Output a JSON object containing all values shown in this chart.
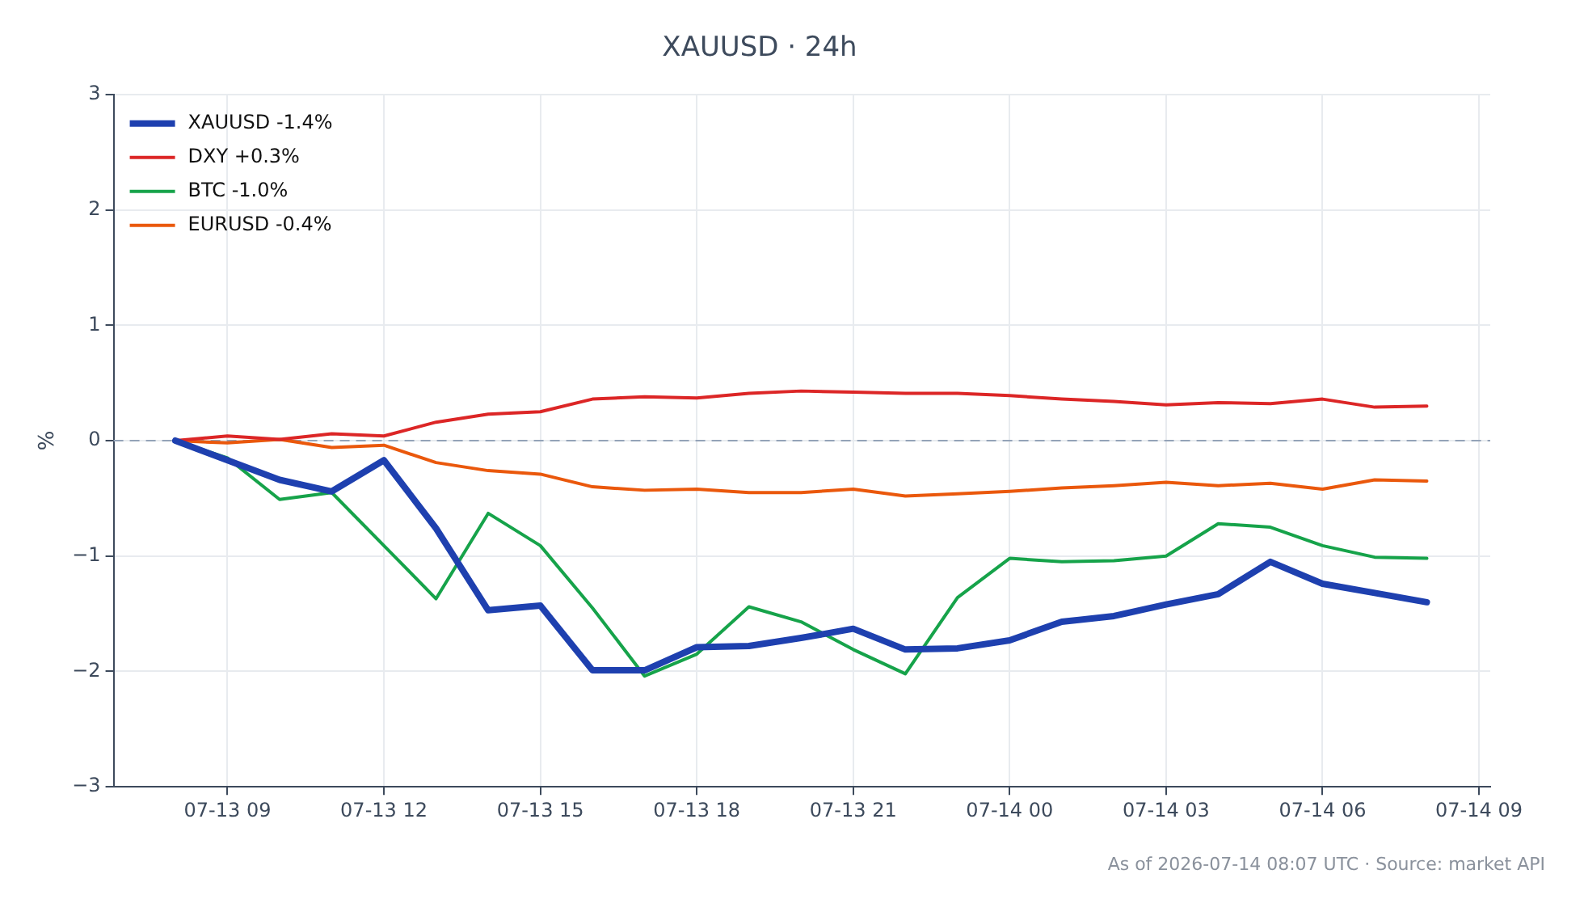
{
  "chart_data": {
    "type": "line",
    "title": "XAUUSD · 24h",
    "ylabel": "%",
    "x": [
      "2026-07-13T08:00",
      "2026-07-13T09:00",
      "2026-07-13T10:00",
      "2026-07-13T11:00",
      "2026-07-13T12:00",
      "2026-07-13T13:00",
      "2026-07-13T14:00",
      "2026-07-13T15:00",
      "2026-07-13T16:00",
      "2026-07-13T17:00",
      "2026-07-13T18:00",
      "2026-07-13T19:00",
      "2026-07-13T20:00",
      "2026-07-13T21:00",
      "2026-07-13T22:00",
      "2026-07-13T23:00",
      "2026-07-14T00:00",
      "2026-07-14T01:00",
      "2026-07-14T02:00",
      "2026-07-14T03:00",
      "2026-07-14T04:00",
      "2026-07-14T05:00",
      "2026-07-14T06:00",
      "2026-07-14T07:00",
      "2026-07-14T08:00"
    ],
    "series": [
      {
        "name": "XAUUSD -1.4%",
        "color": "#1e40af",
        "values": [
          0,
          -0.17,
          -0.34,
          -0.44,
          -0.17,
          -0.76,
          -1.47,
          -1.43,
          -1.99,
          -1.99,
          -1.79,
          -1.78,
          -1.71,
          -1.63,
          -1.81,
          -1.8,
          -1.73,
          -1.57,
          -1.52,
          -1.42,
          -1.33,
          -1.05,
          -1.24,
          -1.32,
          -1.4
        ]
      },
      {
        "name": "DXY +0.3%",
        "color": "#dc2626",
        "values": [
          0,
          0.04,
          0.01,
          0.06,
          0.04,
          0.16,
          0.23,
          0.25,
          0.36,
          0.38,
          0.37,
          0.41,
          0.43,
          0.42,
          0.41,
          0.41,
          0.39,
          0.36,
          0.34,
          0.31,
          0.33,
          0.32,
          0.36,
          0.29,
          0.3
        ]
      },
      {
        "name": "BTC -1.0%",
        "color": "#16a34a",
        "values": [
          0,
          -0.15,
          -0.51,
          -0.45,
          -0.91,
          -1.37,
          -0.63,
          -0.91,
          -1.45,
          -2.04,
          -1.85,
          -1.44,
          -1.57,
          -1.81,
          -2.02,
          -1.36,
          -1.02,
          -1.05,
          -1.04,
          -1,
          -0.72,
          -0.75,
          -0.91,
          -1.01,
          -1.02
        ]
      },
      {
        "name": "EURUSD -0.4%",
        "color": "#ea580c",
        "values": [
          0,
          -0.02,
          0.01,
          -0.06,
          -0.04,
          -0.19,
          -0.26,
          -0.29,
          -0.4,
          -0.43,
          -0.42,
          -0.45,
          -0.45,
          -0.42,
          -0.48,
          -0.46,
          -0.44,
          -0.41,
          -0.39,
          -0.36,
          -0.39,
          -0.37,
          -0.42,
          -0.34,
          -0.35
        ]
      }
    ],
    "xlim": [
      "2026-07-13T06:49",
      "2026-07-14T09:13"
    ],
    "xticks": [
      {
        "value": "2026-07-13T09:00",
        "label": "07-13 09"
      },
      {
        "value": "2026-07-13T12:00",
        "label": "07-13 12"
      },
      {
        "value": "2026-07-13T15:00",
        "label": "07-13 15"
      },
      {
        "value": "2026-07-13T18:00",
        "label": "07-13 18"
      },
      {
        "value": "2026-07-13T21:00",
        "label": "07-13 21"
      },
      {
        "value": "2026-07-14T00:00",
        "label": "07-14 00"
      },
      {
        "value": "2026-07-14T03:00",
        "label": "07-14 03"
      },
      {
        "value": "2026-07-14T06:00",
        "label": "07-14 06"
      },
      {
        "value": "2026-07-14T09:00",
        "label": "07-14 09"
      }
    ],
    "ylim": [
      -3,
      3
    ],
    "yticks": [
      -3,
      -2,
      -1,
      0,
      1,
      2,
      3
    ],
    "ref_lines": [
      {
        "axis": "y",
        "value": 0,
        "color": "#94a3b8",
        "line_style": "dashed"
      }
    ],
    "grid": true,
    "legend": "top left",
    "marker": "none",
    "line_style": "solid",
    "annotations": [
      "As of 2026-07-14 08:07 UTC · Source: market API"
    ]
  }
}
